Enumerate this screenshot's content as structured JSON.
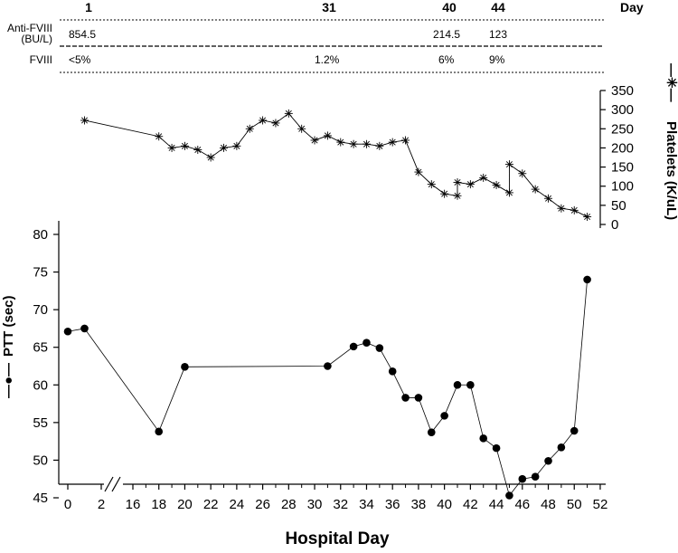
{
  "table": {
    "header": {
      "days": [
        "1",
        "31",
        "40",
        "44"
      ],
      "right_label": "Day"
    },
    "rows": [
      {
        "label_line1": "Anti-FVIII",
        "label_line2": "(BU/L)",
        "values": [
          "854.5",
          "",
          "214.5",
          "123"
        ]
      },
      {
        "label_line1": "FVIII",
        "label_line2": "",
        "values": [
          "<5%",
          "1.2%",
          "6%",
          "9%"
        ]
      }
    ]
  },
  "chart_data": [
    {
      "type": "line",
      "title": "",
      "xlabel": "Hospital Day",
      "ylabel": "Platelets (K/uL)",
      "y_axis_side": "right",
      "ylim": [
        0,
        350
      ],
      "yticks": [
        "0",
        "50",
        "100",
        "150",
        "200",
        "250",
        "300",
        "350"
      ],
      "marker": "asterisk",
      "series": [
        {
          "x": [
            1,
            18,
            19,
            20,
            21,
            22,
            23,
            24,
            25,
            26,
            27,
            28,
            29,
            30,
            31,
            32,
            33,
            34,
            35,
            36,
            37,
            38,
            39,
            40,
            41,
            41,
            42,
            43,
            44,
            45,
            45,
            46,
            47,
            48,
            49,
            50,
            51
          ],
          "values": [
            272,
            230,
            200,
            205,
            195,
            175,
            200,
            205,
            250,
            272,
            265,
            290,
            250,
            220,
            232,
            215,
            210,
            210,
            205,
            215,
            220,
            137,
            105,
            80,
            75,
            110,
            105,
            122,
            103,
            83,
            157,
            133,
            92,
            68,
            42,
            37,
            20
          ]
        }
      ]
    },
    {
      "type": "line",
      "title": "",
      "xlabel": "Hospital Day",
      "ylabel": "PTT (sec)",
      "y_axis_side": "left",
      "ylim": [
        45,
        80
      ],
      "yticks": [
        "45",
        "50",
        "55",
        "60",
        "65",
        "70",
        "75",
        "80"
      ],
      "xticks": [
        "0",
        "2",
        "16",
        "18",
        "20",
        "22",
        "24",
        "26",
        "28",
        "30",
        "32",
        "34",
        "36",
        "38",
        "40",
        "42",
        "44",
        "46",
        "48",
        "50",
        "52"
      ],
      "x_axis_break": "between 2 and 16",
      "marker": "filled-circle",
      "series": [
        {
          "x": [
            0,
            1,
            18,
            20,
            31,
            33,
            34,
            35,
            36,
            37,
            38,
            39,
            40,
            41,
            42,
            43,
            44,
            45,
            46,
            47,
            48,
            49,
            50,
            51
          ],
          "values": [
            67.1,
            67.5,
            53.8,
            62.4,
            62.5,
            65.1,
            65.6,
            64.9,
            61.8,
            58.3,
            58.3,
            53.7,
            55.9,
            60.0,
            60.0,
            52.9,
            51.6,
            45.3,
            47.5,
            47.8,
            49.9,
            51.7,
            53.9,
            74.0
          ]
        }
      ]
    }
  ]
}
